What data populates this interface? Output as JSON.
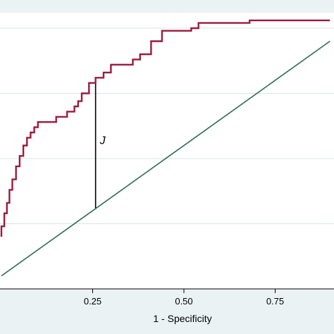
{
  "chart_data": {
    "type": "line",
    "xlabel": "1 - Specificity",
    "ylabel": "",
    "xlim": [
      0,
      0.9
    ],
    "ylim": [
      0,
      1
    ],
    "x_ticks": [
      0.25,
      0.5,
      0.75
    ],
    "x_tick_labels": [
      "0.25",
      "0.50",
      "0.75"
    ],
    "y_gridlines": [
      0.25,
      0.5,
      0.75,
      1.0
    ],
    "grid": "horizontal",
    "colors": {
      "background": "#eaf2f3",
      "plot_area": "#ffffff",
      "grid": "#d9e4e6",
      "roc_curve": "#9b1b3c",
      "reference_line": "#2e6b57",
      "annotation": "#000000"
    },
    "series": [
      {
        "role": "roc-curve",
        "x": [
          0,
          0,
          0.008,
          0.008,
          0.015,
          0.015,
          0.022,
          0.022,
          0.03,
          0.03,
          0.04,
          0.04,
          0.05,
          0.05,
          0.06,
          0.06,
          0.07,
          0.07,
          0.08,
          0.08,
          0.09,
          0.09,
          0.1,
          0.1,
          0.15,
          0.15,
          0.18,
          0.18,
          0.2,
          0.2,
          0.21,
          0.21,
          0.22,
          0.22,
          0.24,
          0.24,
          0.258,
          0.258,
          0.28,
          0.28,
          0.3,
          0.3,
          0.36,
          0.36,
          0.38,
          0.38,
          0.41,
          0.41,
          0.44,
          0.44,
          0.52,
          0.52,
          0.54,
          0.54,
          0.68,
          0.68,
          0.73,
          0.73,
          0.9
        ],
        "y": [
          0.2,
          0.24,
          0.24,
          0.29,
          0.29,
          0.33,
          0.33,
          0.38,
          0.38,
          0.42,
          0.42,
          0.47,
          0.47,
          0.51,
          0.51,
          0.55,
          0.55,
          0.58,
          0.58,
          0.6,
          0.6,
          0.62,
          0.62,
          0.64,
          0.64,
          0.66,
          0.66,
          0.68,
          0.68,
          0.7,
          0.7,
          0.72,
          0.72,
          0.75,
          0.75,
          0.79,
          0.79,
          0.81,
          0.81,
          0.83,
          0.83,
          0.86,
          0.86,
          0.88,
          0.88,
          0.9,
          0.9,
          0.95,
          0.95,
          0.99,
          0.99,
          1.0,
          1.0,
          1.02,
          1.02,
          1.03,
          1.03,
          1.03,
          1.03
        ]
      },
      {
        "role": "reference-line",
        "x": [
          0,
          0.9
        ],
        "y": [
          0.05,
          0.95
        ]
      }
    ],
    "annotations": [
      {
        "text": "J",
        "x": 0.258,
        "y_from": 0.31,
        "y_to": 0.79
      }
    ]
  }
}
